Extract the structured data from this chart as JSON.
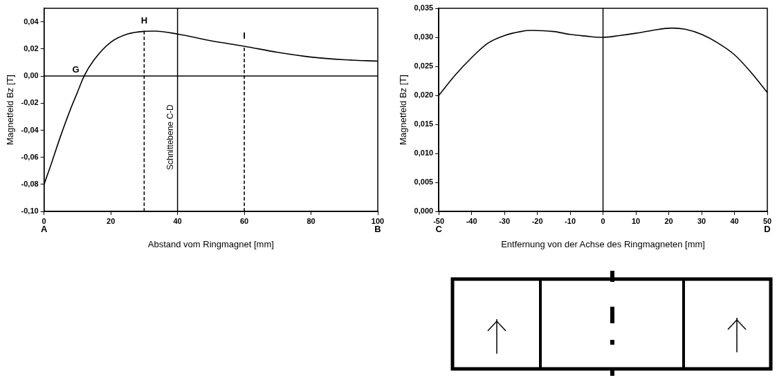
{
  "chart_data": [
    {
      "type": "line",
      "xlabel": "Abstand vom Ringmagnet [mm]",
      "ylabel": "Magnetfeld Bz [T]",
      "xlim": [
        0,
        100
      ],
      "xticks": [
        0,
        20,
        40,
        60,
        80,
        100
      ],
      "ylim": [
        -0.1,
        0.05
      ],
      "yticks": [
        {
          "value": -0.1,
          "label": "-0,10"
        },
        {
          "value": -0.08,
          "label": "-0,08"
        },
        {
          "value": -0.06,
          "label": "-0,06"
        },
        {
          "value": -0.04,
          "label": "-0,04"
        },
        {
          "value": -0.02,
          "label": "-0,02"
        },
        {
          "value": 0,
          "label": "0,00"
        },
        {
          "value": 0.02,
          "label": "0,02"
        },
        {
          "value": 0.04,
          "label": "0,04"
        }
      ],
      "grid": false,
      "legend": false,
      "marker": "none",
      "series": [
        {
          "color": "#000000",
          "x": [
            0,
            2,
            5,
            8,
            10,
            12,
            15,
            20,
            25,
            30,
            33,
            40,
            50,
            60,
            70,
            80,
            90,
            100
          ],
          "values": [
            -0.08,
            -0.066,
            -0.044,
            -0.024,
            -0.012,
            0,
            0.012,
            0.025,
            0.031,
            0.033,
            0.0332,
            0.031,
            0.026,
            0.022,
            0.0175,
            0.014,
            0.012,
            0.011
          ]
        },
        {
          "type": "line",
          "color": "#000000",
          "line_style": "dashed",
          "x": [
            30,
            30
          ],
          "values": [
            -0.1,
            0.033
          ]
        },
        {
          "type": "line",
          "color": "#000000",
          "line_style": "dashed",
          "x": [
            60,
            60
          ],
          "values": [
            -0.1,
            0.022
          ]
        }
      ],
      "ref_lines": [
        {
          "axis": "y",
          "value": 0,
          "color": "#000000"
        },
        {
          "axis": "x",
          "value": 40,
          "label": "Schnittebene C-D",
          "color": "#000000"
        }
      ],
      "annotations": [
        {
          "text": "G",
          "x": 12,
          "y": 0
        },
        {
          "text": "H",
          "x": 30,
          "y": 0.033
        },
        {
          "text": "I",
          "x": 60,
          "y": 0.022
        },
        "A",
        "B"
      ]
    },
    {
      "type": "line",
      "xlabel": "Entfernung von der Achse des Ringmagneten [mm]",
      "ylabel": "Magnetfeld Bz [T]",
      "xlim": [
        -50,
        50
      ],
      "xticks": [
        -50,
        -40,
        -30,
        -20,
        -10,
        0,
        10,
        20,
        30,
        40,
        50
      ],
      "ylim": [
        0,
        0.035
      ],
      "yticks": [
        {
          "value": 0,
          "label": "0,000"
        },
        {
          "value": 0.005,
          "label": "0,005"
        },
        {
          "value": 0.01,
          "label": "0,010"
        },
        {
          "value": 0.015,
          "label": "0,015"
        },
        {
          "value": 0.02,
          "label": "0,020"
        },
        {
          "value": 0.025,
          "label": "0,025"
        },
        {
          "value": 0.03,
          "label": "0,030"
        },
        {
          "value": 0.035,
          "label": "0,035"
        }
      ],
      "grid": false,
      "legend": false,
      "marker": "none",
      "series": [
        {
          "color": "#000000",
          "x": [
            -50,
            -45,
            -40,
            -35,
            -30,
            -25,
            -22,
            -15,
            -10,
            -5,
            -1,
            0,
            5,
            10,
            15,
            21,
            25,
            30,
            35,
            40,
            45,
            50
          ],
          "values": [
            0.02,
            0.0235,
            0.0265,
            0.029,
            0.0303,
            0.031,
            0.0312,
            0.031,
            0.0305,
            0.0302,
            0.03,
            0.03,
            0.0303,
            0.0307,
            0.0312,
            0.0316,
            0.0314,
            0.0305,
            0.029,
            0.027,
            0.024,
            0.0205
          ]
        }
      ],
      "ref_lines": [
        {
          "axis": "x",
          "value": 0,
          "color": "#000000"
        }
      ],
      "annotations": [
        "C",
        "D"
      ]
    }
  ]
}
